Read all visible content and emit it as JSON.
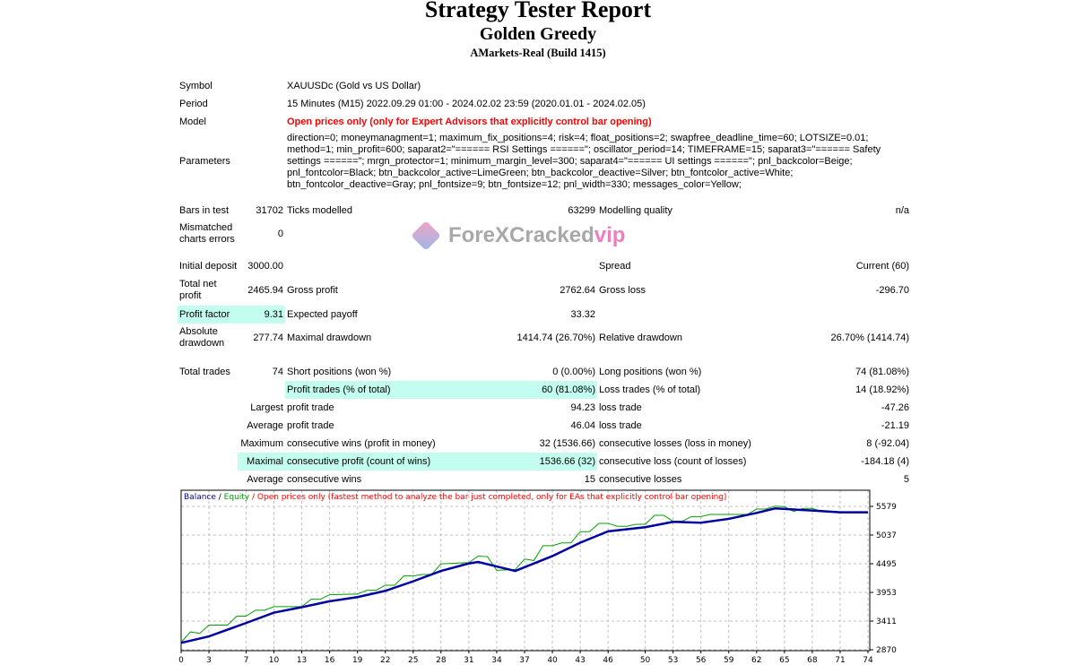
{
  "header": {
    "title": "Strategy Tester Report",
    "expert": "Golden Greedy",
    "server": "AMarkets-Real (Build 1415)"
  },
  "info": {
    "symbol_label": "Symbol",
    "symbol": "XAUUSDc (Gold vs US Dollar)",
    "period_label": "Period",
    "period": "15 Minutes (M15) 2022.09.29 01:00 - 2024.02.02 23:59 (2020.01.01 - 2024.02.05)",
    "model_label": "Model",
    "model": "Open prices only (only for Expert Advisors that explicitly control bar opening)",
    "parameters_label": "Parameters",
    "parameters": "direction=0; moneymanagment=1; maximum_fix_positions=4; risk=4; float_positions=2; swapfree_deadline_time=60; LOTSIZE=0.01; method=1; min_profit=600; saparat2=\"====== RSI Settings ======\"; oscillator_period=14; TIMEFRAME=15; saparat3=\"====== Safety settings ======\"; mrgn_protector=1; minimum_margin_level=300; saparat4=\"====== UI settings ======\"; pnl_backcolor=Beige; pnl_fontcolor=Black; btn_backcolor_active=LimeGreen; btn_backcolor_deactive=Silver; btn_fontcolor_active=White; btn_fontcolor_deactive=Gray; pnl_fontsize=9; btn_fontsize=12; pnl_width=330; messages_color=Yellow;"
  },
  "stats": {
    "bars_label": "Bars in test",
    "bars": "31702",
    "ticks_label": "Ticks modelled",
    "ticks": "63299",
    "quality_label": "Modelling quality",
    "quality": "n/a",
    "mismatch_label": "Mismatched charts errors",
    "mismatch": "0",
    "deposit_label": "Initial deposit",
    "deposit": "3000.00",
    "spread_label": "Spread",
    "spread": "Current (60)",
    "net_label": "Total net profit",
    "net": "2465.94",
    "gross_profit_label": "Gross profit",
    "gross_profit": "2762.64",
    "gross_loss_label": "Gross loss",
    "gross_loss": "-296.70",
    "pf_label": "Profit factor",
    "pf": "9.31",
    "payoff_label": "Expected payoff",
    "payoff": "33.32",
    "abs_dd_label": "Absolute drawdown",
    "abs_dd": "277.74",
    "max_dd_label": "Maximal drawdown",
    "max_dd": "1414.74 (26.70%)",
    "rel_dd_label": "Relative drawdown",
    "rel_dd": "26.70% (1414.74)",
    "trades_label": "Total trades",
    "trades": "74",
    "short_label": "Short positions (won %)",
    "short": "0 (0.00%)",
    "long_label": "Long positions (won %)",
    "long": "74 (81.08%)",
    "profit_trades_label": "Profit trades (% of total)",
    "profit_trades": "60 (81.08%)",
    "loss_trades_label": "Loss trades (% of total)",
    "loss_trades": "14 (18.92%)",
    "largest": "Largest",
    "largest_profit_label": "profit trade",
    "largest_profit": "94.23",
    "largest_loss_label": "loss trade",
    "largest_loss": "-47.26",
    "average": "Average",
    "avg_profit_label": "profit trade",
    "avg_profit": "46.04",
    "avg_loss_label": "loss trade",
    "avg_loss": "-21.19",
    "maximum": "Maximum",
    "max_wins_label": "consecutive wins (profit in money)",
    "max_wins": "32 (1536.66)",
    "max_losses_label": "consecutive losses (loss in money)",
    "max_losses": "8 (-92.04)",
    "maximal": "Maximal",
    "maximal_profit_label": "consecutive profit (count of wins)",
    "maximal_profit": "1536.66 (32)",
    "maximal_loss_label": "consecutive loss (count of losses)",
    "maximal_loss": "-184.18 (4)",
    "average2": "Average",
    "avg_wins_label": "consecutive wins",
    "avg_wins": "15",
    "avg_losses_label": "consecutive losses",
    "avg_losses": "5"
  },
  "watermark": {
    "text": "ForeXCracked",
    "suffix": "vip"
  },
  "chart_data": {
    "type": "line",
    "legend": {
      "balance": "Balance",
      "sep": " / ",
      "equity": "Equity",
      "note": " / Open prices only (fastest method to analyze the bar just completed, only for EAs that explicitly control bar opening)"
    },
    "colors": {
      "balance": "#0000a0",
      "equity": "#00a000",
      "note": "#ff0000",
      "grid": "#c0c0c0"
    },
    "xlabel": "",
    "ylabel": "",
    "xlim": [
      0,
      74
    ],
    "ylim": [
      2870,
      5870
    ],
    "x_ticks": [
      0,
      3,
      7,
      10,
      13,
      16,
      19,
      22,
      25,
      28,
      31,
      34,
      37,
      40,
      43,
      46,
      50,
      53,
      56,
      59,
      62,
      65,
      68,
      71,
      74
    ],
    "y_ticks": [
      2870,
      3411,
      3953,
      4495,
      5037,
      5579
    ],
    "series": [
      {
        "name": "Balance",
        "points": [
          [
            0,
            3000
          ],
          [
            3,
            3123
          ],
          [
            7,
            3376
          ],
          [
            10,
            3572
          ],
          [
            13,
            3674
          ],
          [
            16,
            3786
          ],
          [
            19,
            3865
          ],
          [
            22,
            3983
          ],
          [
            25,
            4163
          ],
          [
            28,
            4359
          ],
          [
            31,
            4500
          ],
          [
            32,
            4528
          ],
          [
            34,
            4444
          ],
          [
            36,
            4359
          ],
          [
            40,
            4640
          ],
          [
            43,
            4893
          ],
          [
            46,
            5107
          ],
          [
            50,
            5185
          ],
          [
            53,
            5286
          ],
          [
            56,
            5270
          ],
          [
            59,
            5343
          ],
          [
            62,
            5455
          ],
          [
            64,
            5540
          ],
          [
            68,
            5500
          ],
          [
            71,
            5467
          ],
          [
            74,
            5467
          ]
        ]
      },
      {
        "name": "Equity",
        "points": [
          [
            0,
            3010
          ],
          [
            1,
            3207
          ],
          [
            2,
            3179
          ],
          [
            3,
            3336
          ],
          [
            5,
            3336
          ],
          [
            6,
            3505
          ],
          [
            7,
            3505
          ],
          [
            8,
            3617
          ],
          [
            9,
            3617
          ],
          [
            10,
            3685
          ],
          [
            13,
            3685
          ],
          [
            14,
            3825
          ],
          [
            15,
            3825
          ],
          [
            16,
            3910
          ],
          [
            19,
            3921
          ],
          [
            20,
            3994
          ],
          [
            21,
            3994
          ],
          [
            22,
            4090
          ],
          [
            23,
            4090
          ],
          [
            24,
            4264
          ],
          [
            25,
            4264
          ],
          [
            26,
            4292
          ],
          [
            27,
            4292
          ],
          [
            28,
            4494
          ],
          [
            31,
            4517
          ],
          [
            32,
            4640
          ],
          [
            33,
            4630
          ],
          [
            34,
            4371
          ],
          [
            36,
            4387
          ],
          [
            37,
            4584
          ],
          [
            38,
            4556
          ],
          [
            39,
            4837
          ],
          [
            40,
            4837
          ],
          [
            41,
            4888
          ],
          [
            42,
            4888
          ],
          [
            43,
            5101
          ],
          [
            44,
            5101
          ],
          [
            45,
            5258
          ],
          [
            46,
            5258
          ],
          [
            47,
            5202
          ],
          [
            48,
            5202
          ],
          [
            49,
            5241
          ],
          [
            50,
            5241
          ],
          [
            51,
            5410
          ],
          [
            52,
            5410
          ],
          [
            53,
            5298
          ],
          [
            54,
            5298
          ],
          [
            55,
            5387
          ],
          [
            56,
            5387
          ],
          [
            57,
            5426
          ],
          [
            61,
            5426
          ],
          [
            62,
            5528
          ],
          [
            63,
            5528
          ],
          [
            64,
            5584
          ],
          [
            65,
            5573
          ],
          [
            66,
            5483
          ],
          [
            67,
            5540
          ],
          [
            68,
            5540
          ],
          [
            69,
            5483
          ],
          [
            74,
            5467
          ]
        ]
      }
    ]
  }
}
